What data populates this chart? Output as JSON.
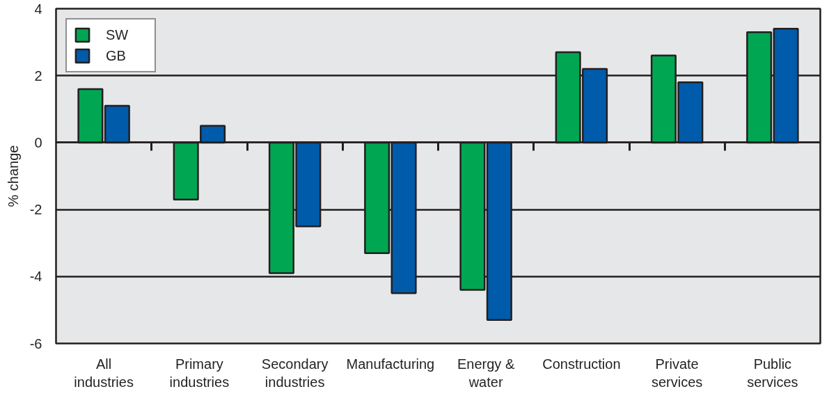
{
  "chart_data": {
    "type": "bar",
    "ylabel": "% change",
    "categories": [
      "All industries",
      "Primary industries",
      "Secondary industries",
      "Manufacturing",
      "Energy & water",
      "Construction",
      "Private services",
      "Public services"
    ],
    "series": [
      {
        "name": "SW",
        "color": "#00a651",
        "values": [
          1.6,
          -1.7,
          -3.9,
          -3.3,
          -4.4,
          2.7,
          2.6,
          3.3
        ]
      },
      {
        "name": "GB",
        "color": "#005bab",
        "values": [
          1.1,
          0.5,
          -2.5,
          -4.5,
          -5.3,
          2.2,
          1.8,
          3.4
        ]
      }
    ],
    "ylim": [
      -6,
      4
    ],
    "yticks": [
      -6,
      -4,
      -2,
      0,
      2,
      4
    ],
    "grid": "y",
    "legend": "top left"
  }
}
